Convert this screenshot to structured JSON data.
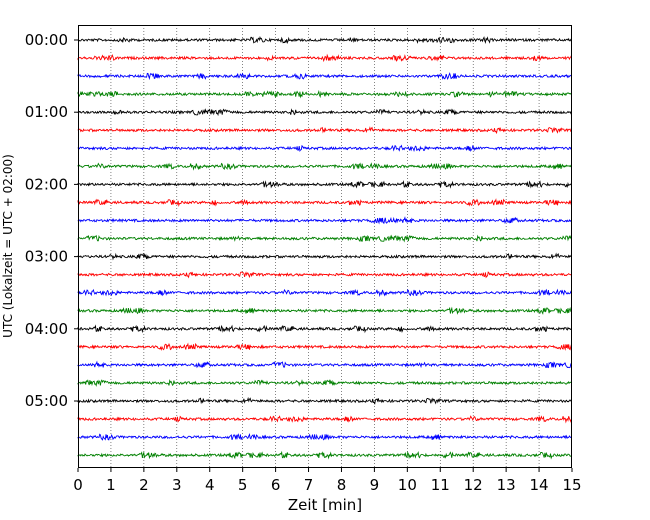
{
  "chart_data": {
    "type": "line",
    "title": "",
    "xlabel": "Zeit  [min]",
    "ylabel": "UTC (Lokalzeit = UTC + 02:00)",
    "xlim": [
      0,
      15
    ],
    "x_ticks": [
      "0",
      "1",
      "2",
      "3",
      "4",
      "5",
      "6",
      "7",
      "8",
      "9",
      "10",
      "11",
      "12",
      "13",
      "14",
      "15"
    ],
    "y_tick_labels": [
      "00:00",
      "01:00",
      "02:00",
      "03:00",
      "04:00",
      "05:00"
    ],
    "grid": "vertical dotted at each minute",
    "legend": "none",
    "trace_interval_min": 15,
    "trace_colors": [
      "#000000",
      "#ff0000",
      "#0000ff",
      "#008000"
    ],
    "series": [
      {
        "start": "00:00",
        "color": "#000000"
      },
      {
        "start": "00:15",
        "color": "#ff0000"
      },
      {
        "start": "00:30",
        "color": "#0000ff"
      },
      {
        "start": "00:45",
        "color": "#008000"
      },
      {
        "start": "01:00",
        "color": "#000000"
      },
      {
        "start": "01:15",
        "color": "#ff0000"
      },
      {
        "start": "01:30",
        "color": "#0000ff"
      },
      {
        "start": "01:45",
        "color": "#008000"
      },
      {
        "start": "02:00",
        "color": "#000000"
      },
      {
        "start": "02:15",
        "color": "#ff0000"
      },
      {
        "start": "02:30",
        "color": "#0000ff"
      },
      {
        "start": "02:45",
        "color": "#008000"
      },
      {
        "start": "03:00",
        "color": "#000000"
      },
      {
        "start": "03:15",
        "color": "#ff0000"
      },
      {
        "start": "03:30",
        "color": "#0000ff"
      },
      {
        "start": "03:45",
        "color": "#008000"
      },
      {
        "start": "04:00",
        "color": "#000000"
      },
      {
        "start": "04:15",
        "color": "#ff0000"
      },
      {
        "start": "04:30",
        "color": "#0000ff"
      },
      {
        "start": "04:45",
        "color": "#008000"
      },
      {
        "start": "05:00",
        "color": "#000000"
      },
      {
        "start": "05:15",
        "color": "#ff0000"
      },
      {
        "start": "05:30",
        "color": "#0000ff"
      },
      {
        "start": "05:45",
        "color": "#008000"
      }
    ]
  }
}
